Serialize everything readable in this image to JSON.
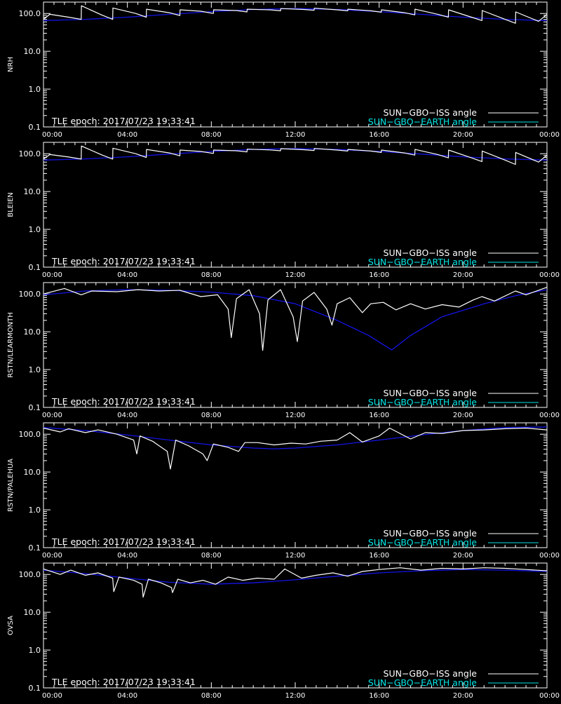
{
  "colors": {
    "background": "#000000",
    "axes": "#ffffff",
    "iss_visible": "#ffffff",
    "iss_hidden": "#8a8a8a",
    "earth_model": "#1414e6",
    "earth_legend": "#00e5e5"
  },
  "x_ticks": [
    "00:00",
    "04:00",
    "08:00",
    "12:00",
    "16:00",
    "20:00",
    "00:00"
  ],
  "y_ticks": [
    "0.1",
    "1.0",
    "10.0",
    "100.0"
  ],
  "legend": {
    "iss": "SUN−GBO−ISS angle",
    "earth": "SUN−GBO−EARTH angle"
  },
  "annotation": "TLE epoch: 2017/07/23 19:33:41",
  "chart_data": [
    {
      "type": "line",
      "ylabel": "NRH",
      "xlim": [
        0,
        24
      ],
      "ylim": [
        0.1,
        200
      ],
      "yscale": "log",
      "series": [
        {
          "name": "SUN−GBO−EARTH angle",
          "x": [
            0,
            2,
            4,
            6,
            8,
            10,
            12,
            14,
            16,
            18,
            20,
            22,
            24
          ],
          "y": [
            65,
            70,
            80,
            95,
            112,
            128,
            135,
            128,
            112,
            95,
            80,
            70,
            65
          ]
        },
        {
          "name": "SUN−GBO−ISS angle",
          "x": [
            0,
            0.3,
            1.2,
            1.8,
            1.81,
            2.8,
            3.3,
            3.31,
            4.4,
            4.9,
            4.91,
            6.0,
            6.5,
            6.51,
            7.5,
            8.1,
            8.11,
            9.2,
            9.7,
            9.71,
            10.8,
            11.3,
            11.31,
            12.4,
            12.9,
            12.91,
            14.0,
            14.5,
            14.51,
            15.6,
            16.1,
            16.11,
            17.2,
            17.7,
            17.71,
            18.8,
            19.3,
            19.31,
            20.4,
            20.9,
            20.91,
            22.0,
            22.5,
            22.51,
            23.6,
            24
          ],
          "y": [
            70,
            95,
            80,
            70,
            160,
            90,
            70,
            140,
            100,
            80,
            130,
            105,
            88,
            125,
            115,
            100,
            125,
            120,
            110,
            130,
            125,
            118,
            135,
            128,
            122,
            138,
            125,
            118,
            130,
            118,
            108,
            125,
            105,
            92,
            130,
            95,
            80,
            125,
            80,
            65,
            120,
            70,
            55,
            110,
            62,
            95
          ]
        }
      ]
    },
    {
      "type": "line",
      "ylabel": "BLEIEN",
      "xlim": [
        0,
        24
      ],
      "ylim": [
        0.1,
        200
      ],
      "yscale": "log",
      "series": [
        {
          "name": "SUN−GBO−EARTH angle",
          "x": [
            0,
            2,
            4,
            6,
            8,
            10,
            12,
            14,
            16,
            18,
            20,
            22,
            24
          ],
          "y": [
            68,
            73,
            83,
            98,
            115,
            130,
            137,
            130,
            115,
            98,
            83,
            73,
            68
          ]
        },
        {
          "name": "SUN−GBO−ISS angle",
          "x": [
            0,
            0.3,
            1.2,
            1.8,
            1.81,
            2.8,
            3.3,
            3.31,
            4.4,
            4.9,
            4.91,
            6.0,
            6.5,
            6.51,
            7.5,
            8.1,
            8.11,
            9.2,
            9.7,
            9.71,
            10.8,
            11.3,
            11.31,
            12.4,
            12.9,
            12.91,
            14.0,
            14.5,
            14.51,
            15.6,
            16.1,
            16.11,
            17.2,
            17.7,
            17.71,
            18.8,
            19.3,
            19.31,
            20.4,
            20.9,
            20.91,
            22.0,
            22.5,
            22.51,
            23.6,
            24
          ],
          "y": [
            72,
            95,
            82,
            72,
            160,
            92,
            72,
            140,
            100,
            80,
            130,
            105,
            88,
            125,
            115,
            102,
            125,
            120,
            112,
            132,
            126,
            120,
            136,
            128,
            122,
            138,
            125,
            118,
            130,
            118,
            108,
            125,
            105,
            92,
            130,
            95,
            78,
            125,
            78,
            62,
            118,
            68,
            52,
            108,
            60,
            92
          ]
        }
      ]
    },
    {
      "type": "line",
      "ylabel": "RSTN/LEARMONTH",
      "xlim": [
        0,
        24
      ],
      "ylim": [
        0.1,
        200
      ],
      "yscale": "log",
      "series": [
        {
          "name": "SUN−GBO−EARTH angle",
          "x": [
            0,
            2,
            4,
            6,
            8,
            10,
            12,
            14,
            15.5,
            16.6,
            17.5,
            19,
            21,
            22.5,
            24
          ],
          "y": [
            95,
            120,
            130,
            125,
            112,
            90,
            55,
            20,
            8,
            3.3,
            8,
            25,
            55,
            90,
            130
          ]
        },
        {
          "name": "SUN−GBO−ISS angle",
          "x": [
            0,
            1,
            1.8,
            2.3,
            3.5,
            4.5,
            5.5,
            6.5,
            7.5,
            8.3,
            8.8,
            8.95,
            9.2,
            9.8,
            10.3,
            10.45,
            10.7,
            11.3,
            11.9,
            12.1,
            12.35,
            12.9,
            13.5,
            13.75,
            14.0,
            14.6,
            15.2,
            15.6,
            16.2,
            16.8,
            17.5,
            18.2,
            19.0,
            19.8,
            20.5,
            20.9,
            21.5,
            22.5,
            23.0,
            24
          ],
          "y": [
            100,
            140,
            95,
            120,
            115,
            130,
            120,
            125,
            85,
            95,
            40,
            7,
            75,
            130,
            30,
            3.2,
            70,
            130,
            25,
            5.5,
            65,
            110,
            40,
            15,
            55,
            80,
            32,
            55,
            60,
            38,
            55,
            40,
            52,
            45,
            70,
            85,
            65,
            120,
            95,
            150
          ]
        }
      ]
    },
    {
      "type": "line",
      "ylabel": "RSTN/PALEHUA",
      "xlim": [
        0,
        24
      ],
      "ylim": [
        0.1,
        200
      ],
      "yscale": "log",
      "series": [
        {
          "name": "SUN−GBO−EARTH angle",
          "x": [
            0,
            2,
            4,
            6,
            8,
            10,
            11,
            12,
            14,
            16,
            18,
            20,
            22,
            24
          ],
          "y": [
            150,
            125,
            95,
            70,
            52,
            43,
            41,
            43,
            52,
            70,
            95,
            125,
            150,
            155
          ]
        },
        {
          "name": "SUN−GBO−ISS angle",
          "x": [
            0,
            0.8,
            1.2,
            2.0,
            2.6,
            3.5,
            4.3,
            4.45,
            4.6,
            5.2,
            5.9,
            6.05,
            6.3,
            6.9,
            7.6,
            7.8,
            8.1,
            8.8,
            9.3,
            9.6,
            10.2,
            11.0,
            11.8,
            12.5,
            13.2,
            14.0,
            14.6,
            15.2,
            16.0,
            16.5,
            17.5,
            18.2,
            19.0,
            20.0,
            21.0,
            22.0,
            23.0,
            24
          ],
          "y": [
            145,
            115,
            140,
            110,
            130,
            100,
            70,
            30,
            90,
            65,
            35,
            12,
            70,
            50,
            30,
            20,
            55,
            45,
            35,
            60,
            60,
            52,
            58,
            55,
            65,
            70,
            110,
            62,
            90,
            145,
            75,
            110,
            105,
            125,
            130,
            140,
            145,
            130
          ]
        }
      ]
    },
    {
      "type": "line",
      "ylabel": "OVSA",
      "xlim": [
        0,
        24
      ],
      "ylim": [
        0.1,
        200
      ],
      "yscale": "log",
      "series": [
        {
          "name": "SUN−GBO−EARTH angle",
          "x": [
            0,
            2,
            4,
            6,
            8,
            10,
            12,
            14,
            16,
            18,
            20,
            22,
            24
          ],
          "y": [
            130,
            105,
            80,
            62,
            55,
            60,
            72,
            90,
            110,
            125,
            135,
            130,
            120
          ]
        },
        {
          "name": "SUN−GBO−ISS angle",
          "x": [
            0,
            0.8,
            1.3,
            2.0,
            2.6,
            3.3,
            3.35,
            3.6,
            4.3,
            4.7,
            4.75,
            5.0,
            5.6,
            6.1,
            6.15,
            6.4,
            7.0,
            7.6,
            8.2,
            8.8,
            9.5,
            10.2,
            11.0,
            11.5,
            12.3,
            13.0,
            13.8,
            14.5,
            15.2,
            16.0,
            17.0,
            18.0,
            19.0,
            20.0,
            21.0,
            22.0,
            23.0,
            24
          ],
          "y": [
            140,
            100,
            130,
            95,
            110,
            80,
            35,
            85,
            70,
            55,
            25,
            75,
            60,
            45,
            33,
            75,
            60,
            70,
            55,
            85,
            70,
            80,
            75,
            140,
            80,
            95,
            110,
            90,
            120,
            135,
            150,
            130,
            145,
            140,
            150,
            145,
            135,
            125
          ]
        }
      ]
    }
  ]
}
